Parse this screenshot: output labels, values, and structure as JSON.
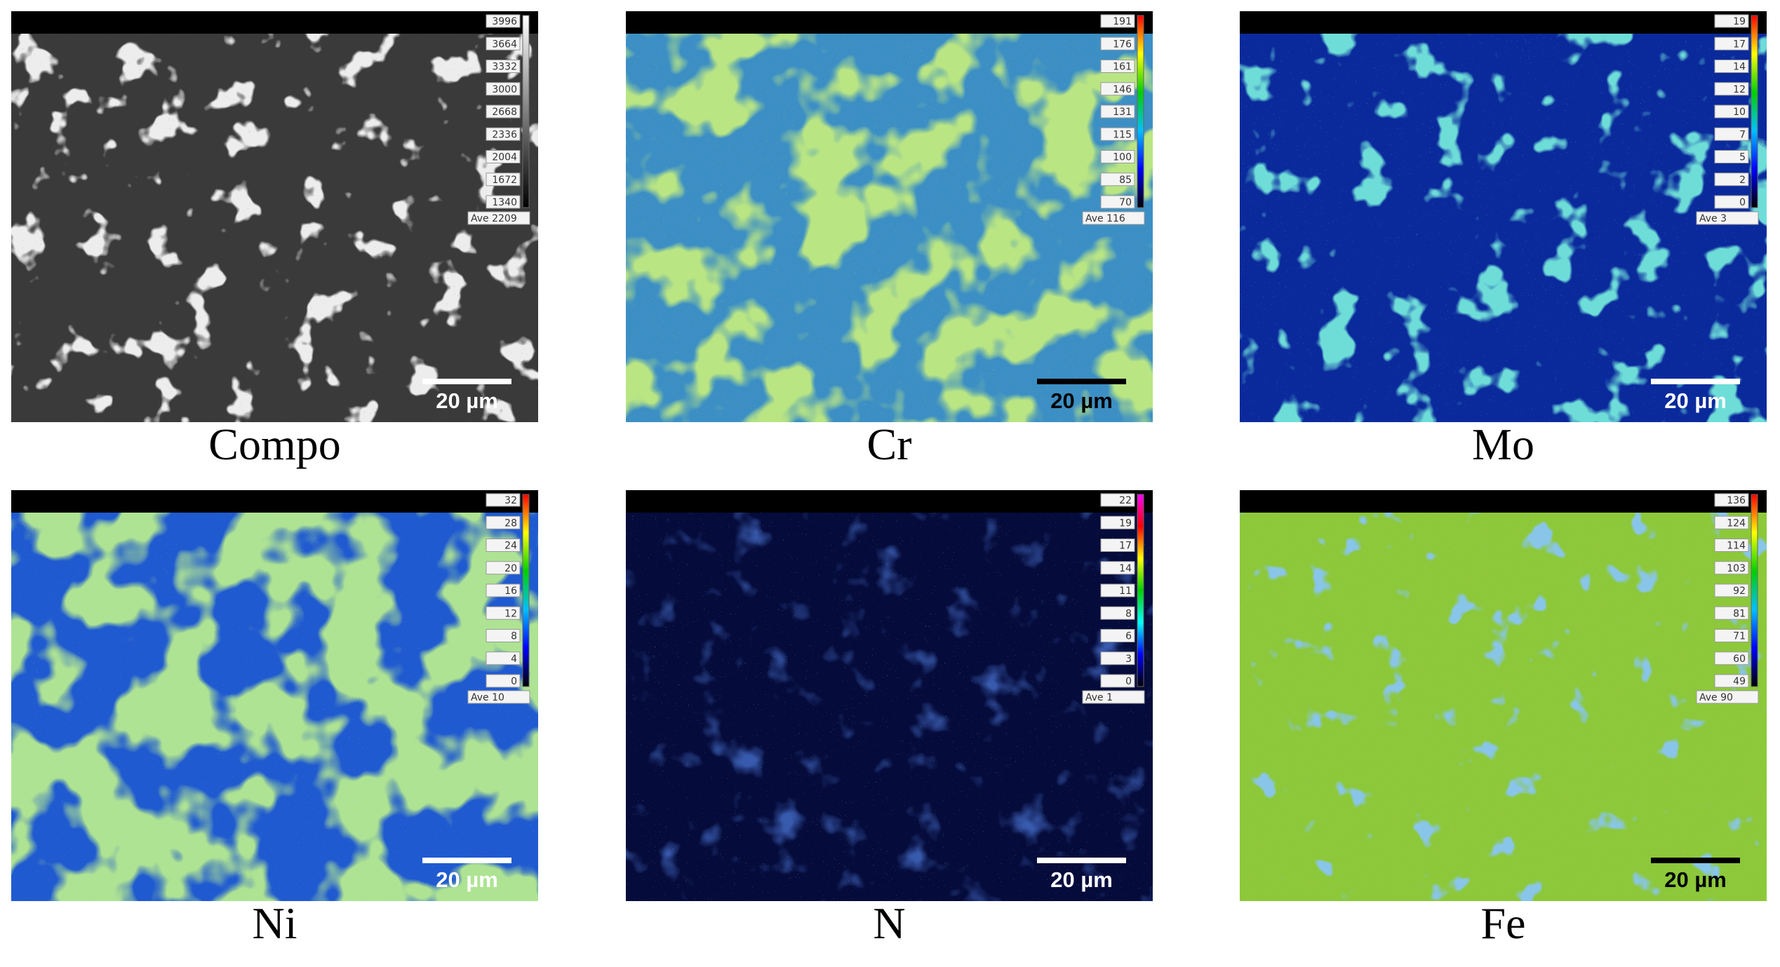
{
  "panels": [
    {
      "label": "Compo",
      "scale_bar": "20 µm",
      "colorbar_ticks": [
        3996,
        3664,
        3332,
        3000,
        2668,
        2336,
        2004,
        1672,
        1340
      ],
      "average": "Ave 2209"
    },
    {
      "label": "Cr",
      "scale_bar": "20 µm",
      "colorbar_ticks": [
        191,
        176,
        161,
        146,
        131,
        115,
        100,
        85,
        70
      ],
      "average": "Ave 116"
    },
    {
      "label": "Mo",
      "scale_bar": "20 µm",
      "colorbar_ticks": [
        19,
        17,
        14,
        12,
        10,
        7,
        5,
        2,
        0
      ],
      "average": "Ave 3"
    },
    {
      "label": "Ni",
      "scale_bar": "20 µm",
      "colorbar_ticks": [
        32,
        28,
        24,
        20,
        16,
        12,
        8,
        4,
        0
      ],
      "average": "Ave 10"
    },
    {
      "label": "N",
      "scale_bar": "20 µm",
      "colorbar_ticks": [
        22,
        19,
        17,
        14,
        11,
        8,
        6,
        3,
        0
      ],
      "average": "Ave 1"
    },
    {
      "label": "Fe",
      "scale_bar": "20 µm",
      "colorbar_ticks": [
        136,
        124,
        114,
        103,
        92,
        81,
        71,
        60,
        49
      ],
      "average": "Ave 90"
    }
  ]
}
